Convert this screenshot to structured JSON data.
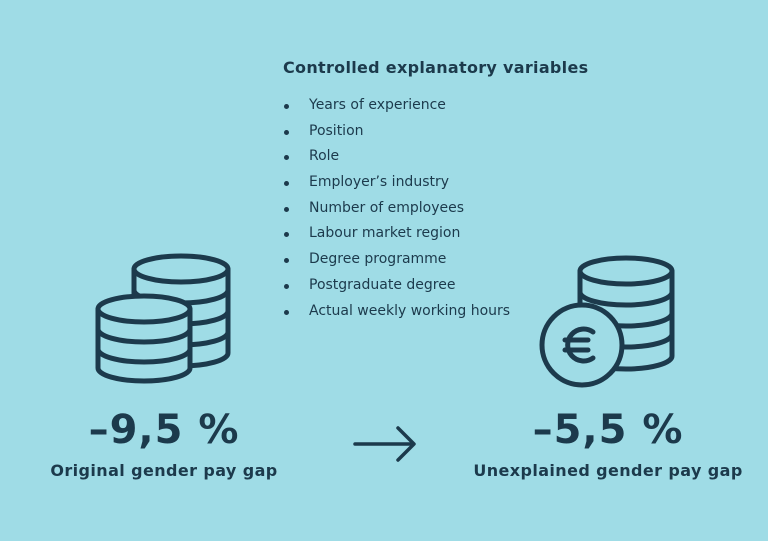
{
  "variables": {
    "title": "Controlled explanatory variables",
    "items": [
      "Years of experience",
      "Position",
      "Role",
      "Employer’s industry",
      "Number of employees",
      "Labour market region",
      "Degree programme",
      "Postgraduate degree",
      "Actual weekly working hours"
    ]
  },
  "original": {
    "value": "–9,5 %",
    "caption": "Original gender pay gap",
    "icon": "coin-stacks-icon"
  },
  "unexplained": {
    "value": "–5,5 %",
    "caption": "Unexplained gender pay gap",
    "icon": "euro-coin-stack-icon"
  },
  "arrow_icon": "right-arrow-icon",
  "colors": {
    "background": "#9fdce6",
    "ink": "#1c3a4c"
  }
}
